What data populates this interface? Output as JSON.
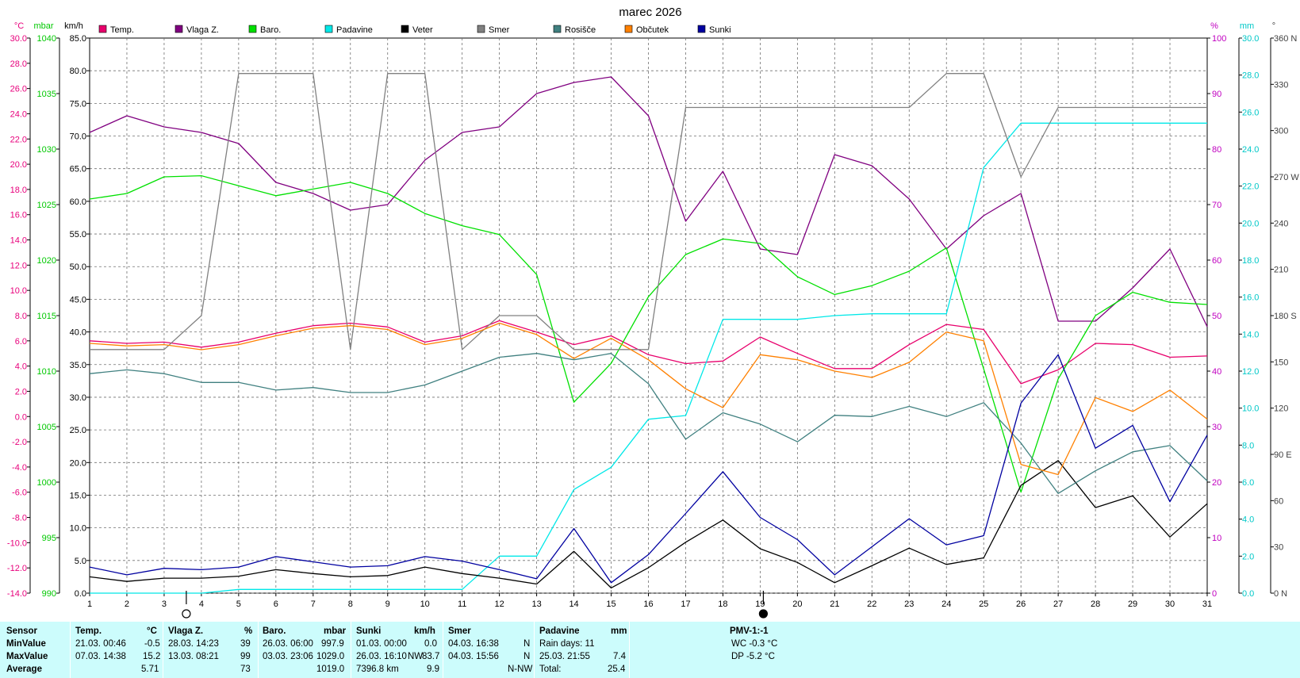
{
  "chart_data": {
    "type": "line",
    "title": "marec 2026",
    "x": [
      1,
      2,
      3,
      4,
      5,
      6,
      7,
      8,
      9,
      10,
      11,
      12,
      13,
      14,
      15,
      16,
      17,
      18,
      19,
      20,
      21,
      22,
      23,
      24,
      25,
      26,
      27,
      28,
      29,
      30,
      31
    ],
    "axes": {
      "temp": {
        "unit": "°C",
        "range": [
          -14,
          30
        ],
        "ticks": [
          "30.0",
          "28.0",
          "26.0",
          "24.0",
          "22.0",
          "20.0",
          "18.0",
          "16.0",
          "14.0",
          "12.0",
          "10.0",
          "8.0",
          "6.0",
          "4.0",
          "2.0",
          "0.0",
          "-2.0",
          "-4.0",
          "-6.0",
          "-8.0",
          "-10.0",
          "-12.0",
          "-14.0"
        ],
        "color": "#e8007c"
      },
      "baro": {
        "unit": "mbar",
        "range": [
          990,
          1040
        ],
        "ticks": [
          "1040",
          "1035",
          "1030",
          "1025",
          "1020",
          "1015",
          "1010",
          "1005",
          "1000",
          "995",
          "990"
        ],
        "color": "#00c800"
      },
      "wind": {
        "unit": "km/h",
        "range": [
          0,
          85
        ],
        "ticks": [
          "85.0",
          "80.0",
          "75.0",
          "70.0",
          "65.0",
          "60.0",
          "55.0",
          "50.0",
          "45.0",
          "40.0",
          "35.0",
          "30.0",
          "25.0",
          "20.0",
          "15.0",
          "10.0",
          "5.0",
          "0.0"
        ],
        "color": "#000000"
      },
      "hum": {
        "unit": "%",
        "range": [
          0,
          100
        ],
        "ticks": [
          "100",
          "90",
          "80",
          "70",
          "60",
          "50",
          "40",
          "30",
          "20",
          "10",
          "0"
        ],
        "color": "#c000c0"
      },
      "rain": {
        "unit": "mm",
        "range": [
          0,
          30
        ],
        "ticks": [
          "30.0",
          "28.0",
          "26.0",
          "24.0",
          "22.0",
          "20.0",
          "18.0",
          "16.0",
          "14.0",
          "12.0",
          "10.0",
          "8.0",
          "6.0",
          "4.0",
          "2.0",
          "0.0"
        ],
        "color": "#00c8c8"
      },
      "dir": {
        "unit": "°",
        "range": [
          0,
          360
        ],
        "ticks": [
          "360 N",
          "330",
          "300",
          "270 W",
          "240",
          "210",
          "180 S",
          "150",
          "120",
          "90 E",
          "60",
          "30",
          "0 N"
        ],
        "color": "#404040"
      }
    },
    "x_ticks": [
      "1",
      "2",
      "3",
      "4",
      "5",
      "6",
      "7",
      "8",
      "9",
      "10",
      "11",
      "12",
      "13",
      "14",
      "15",
      "16",
      "17",
      "18",
      "19",
      "20",
      "21",
      "22",
      "23",
      "24",
      "25",
      "26",
      "27",
      "28",
      "29",
      "30",
      "31"
    ],
    "series": [
      {
        "name": "Temp.",
        "axis": "temp",
        "color": "#e8006c",
        "values": [
          6.0,
          5.8,
          5.9,
          5.5,
          5.9,
          6.6,
          7.2,
          7.4,
          7.1,
          5.9,
          6.4,
          7.6,
          6.7,
          5.7,
          6.4,
          4.9,
          4.2,
          4.4,
          6.3,
          5.0,
          3.8,
          3.8,
          5.7,
          7.3,
          6.9,
          2.6,
          3.7,
          5.8,
          5.7,
          4.7,
          4.8
        ]
      },
      {
        "name": "Vlaga Z.",
        "axis": "hum",
        "color": "#800080",
        "values": [
          83,
          86,
          84,
          83,
          81,
          74,
          72,
          69,
          70,
          78,
          83,
          84,
          90,
          92,
          93,
          86,
          67,
          76,
          62,
          61,
          79,
          77,
          71,
          62,
          68,
          72,
          49,
          49,
          55,
          62,
          48
        ]
      },
      {
        "name": "Baro.",
        "axis": "baro",
        "color": "#00e000",
        "values": [
          1025.5,
          1026.0,
          1027.5,
          1027.6,
          1026.7,
          1025.8,
          1026.4,
          1027.0,
          1026.0,
          1024.2,
          1023.1,
          1022.3,
          1018.7,
          1007.2,
          1010.7,
          1016.7,
          1020.5,
          1021.9,
          1021.5,
          1018.5,
          1016.9,
          1017.7,
          1019.0,
          1021.1,
          1010.2,
          999.1,
          1009.3,
          1015.0,
          1017.1,
          1016.2,
          1016.0
        ]
      },
      {
        "name": "Padavine",
        "axis": "rain",
        "color": "#00e8e8",
        "values": [
          0,
          0,
          0,
          0,
          0.2,
          0.2,
          0.2,
          0.2,
          0.2,
          0.2,
          0.2,
          2.0,
          2.0,
          5.6,
          6.8,
          9.4,
          9.6,
          14.8,
          14.8,
          14.8,
          15.0,
          15.1,
          15.1,
          15.1,
          23.0,
          25.4,
          25.4,
          25.4,
          25.4,
          25.4,
          25.4
        ]
      },
      {
        "name": "Veter",
        "axis": "wind",
        "color": "#000000",
        "values": [
          2.5,
          1.8,
          2.3,
          2.3,
          2.6,
          3.6,
          3.0,
          2.5,
          2.7,
          4.0,
          3.0,
          2.3,
          1.4,
          6.4,
          0.8,
          3.9,
          7.8,
          11.2,
          6.8,
          4.7,
          1.6,
          4.2,
          6.9,
          4.4,
          5.4,
          16.5,
          20.3,
          13.1,
          14.9,
          8.6,
          13.7
        ]
      },
      {
        "name": "Smer",
        "axis": "dir",
        "color": "#808080",
        "values": [
          158,
          158,
          158,
          180,
          337,
          337,
          337,
          158,
          337,
          337,
          158,
          180,
          180,
          158,
          158,
          158,
          315,
          315,
          315,
          315,
          315,
          315,
          315,
          337,
          337,
          270,
          315,
          315,
          315,
          315,
          315
        ]
      },
      {
        "name": "Rosišče",
        "axis": "temp",
        "color": "#408080",
        "values": [
          3.4,
          3.7,
          3.4,
          2.7,
          2.7,
          2.1,
          2.3,
          1.9,
          1.9,
          2.5,
          3.6,
          4.7,
          5.0,
          4.5,
          5.0,
          2.6,
          -1.8,
          0.3,
          -0.6,
          -2.0,
          0.1,
          0.0,
          0.8,
          0.0,
          1.1,
          -2.1,
          -6.1,
          -4.3,
          -2.8,
          -2.3,
          -5.1
        ]
      },
      {
        "name": "Občutek",
        "axis": "temp",
        "color": "#ff8000",
        "values": [
          5.8,
          5.6,
          5.7,
          5.3,
          5.7,
          6.4,
          7.0,
          7.2,
          6.9,
          5.7,
          6.2,
          7.4,
          6.5,
          4.6,
          6.2,
          4.5,
          2.2,
          0.7,
          4.9,
          4.5,
          3.6,
          3.1,
          4.3,
          6.7,
          6.0,
          -3.8,
          -4.6,
          1.5,
          0.4,
          2.1,
          -0.2
        ]
      },
      {
        "name": "Sunki",
        "axis": "wind",
        "color": "#0000a0",
        "values": [
          4.0,
          2.8,
          3.8,
          3.6,
          4.0,
          5.6,
          4.8,
          4.0,
          4.2,
          5.6,
          4.9,
          3.6,
          2.2,
          9.9,
          1.6,
          5.9,
          12.2,
          18.6,
          11.6,
          8.2,
          2.8,
          7.1,
          11.4,
          7.4,
          8.8,
          29.1,
          36.5,
          22.2,
          25.7,
          14.0,
          24.2
        ]
      }
    ],
    "moon_phases": [
      {
        "day": 4,
        "phase": "full"
      },
      {
        "day": 19,
        "phase": "new"
      }
    ],
    "grid": true,
    "legend": "top"
  },
  "summary": {
    "header": {
      "sensor": "Sensor",
      "temp": "Temp.",
      "temp_unit": "°C",
      "hum": "Vlaga Z.",
      "hum_unit": "%",
      "baro": "Baro.",
      "baro_unit": "mbar",
      "gust": "Sunki",
      "gust_unit": "km/h",
      "dir": "Smer",
      "rain": "Padavine",
      "rain_unit": "mm",
      "pmv": "PMV-1:-1"
    },
    "rows": {
      "min": "MinValue",
      "max": "MaxValue",
      "avg": "Average"
    },
    "temp": {
      "min_time": "21.03.  00:46",
      "min": "-0.5",
      "max_time": "07.03.  14:38",
      "max": "15.2",
      "avg": "5.71"
    },
    "hum": {
      "min_time": "28.03.  14:23",
      "min": "39",
      "max_time": "13.03.  08:21",
      "max": "99",
      "avg": "73"
    },
    "baro": {
      "min_time": "26.03.  06:00",
      "min": "997.9",
      "max_time": "03.03.  23:06",
      "max": "1029.0",
      "avg": "1019.0"
    },
    "gust": {
      "min_time": "01.03.  00:00",
      "min": "0.0",
      "max_time": "26.03.  16:10",
      "max_dir": "NW",
      "max": "83.7",
      "avg_label": "7396.8 km",
      "avg": "9.9"
    },
    "dir": {
      "min_time": "04.03.  16:38",
      "min": "N",
      "max_time": "04.03.  15:56",
      "max": "N",
      "avg": "N-NW"
    },
    "rain": {
      "days_label": "Rain days: 11",
      "max_time": "25.03.  21:55",
      "max": "7.4",
      "total_label": "Total:",
      "total": "25.4"
    },
    "pmv": {
      "wc": "WC -0.3 °C",
      "dp": "DP -5.2 °C"
    }
  }
}
